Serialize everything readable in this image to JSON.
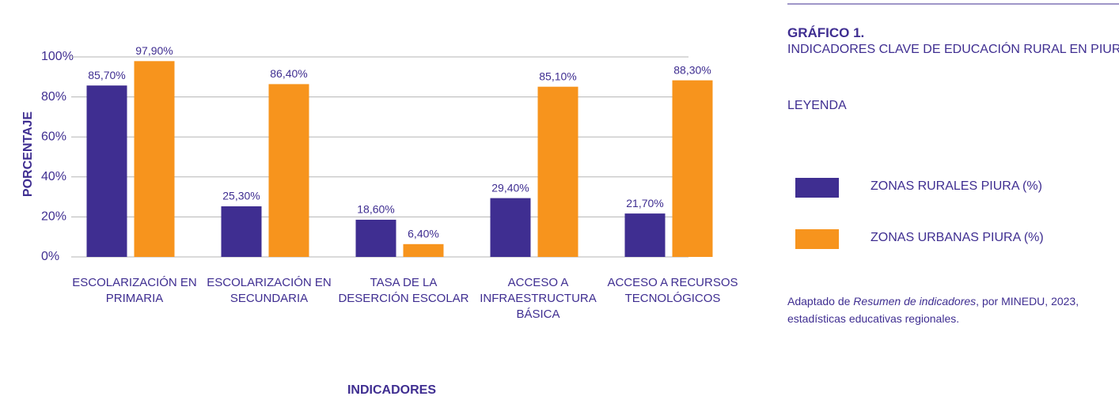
{
  "chart_data": {
    "type": "bar",
    "title": "GRÁFICO 1.",
    "subtitle": "INDICADORES CLAVE DE EDUCACIÓN RURAL EN PIURA",
    "legend_title": "LEYENDA",
    "x_label": "INDICADORES",
    "y_label": "PORCENTAJE",
    "categories": [
      "ESCOLARIZACIÓN EN PRIMARIA",
      "ESCOLARIZACIÓN EN SECUNDARIA",
      "TASA DE LA DESERCIÓN ESCOLAR",
      "ACCESO A INFRAESTRUCTURA BÁSICA",
      "ACCESO A RECURSOS TECNOLÓGICOS"
    ],
    "series": [
      {
        "name": "ZONAS RURALES PIURA (%)",
        "color": "#3f2e91",
        "values": [
          85.7,
          25.3,
          18.6,
          29.4,
          21.7
        ],
        "value_labels": [
          "85,70%",
          "25,30%",
          "18,60%",
          "29,40%",
          "21,70%"
        ]
      },
      {
        "name": "ZONAS URBANAS PIURA (%)",
        "color": "#f7941d",
        "values": [
          97.9,
          86.4,
          6.4,
          85.1,
          88.3
        ],
        "value_labels": [
          "97,90%",
          "86,40%",
          "6,40%",
          "85,10%",
          "88,30%"
        ]
      }
    ],
    "ylim": [
      0,
      100
    ],
    "yticks": [
      {
        "value": 0,
        "label": "0%"
      },
      {
        "value": 20,
        "label": "20%"
      },
      {
        "value": 40,
        "label": "40%"
      },
      {
        "value": 60,
        "label": "60%"
      },
      {
        "value": 80,
        "label": "80%"
      },
      {
        "value": 100,
        "label": "100%"
      }
    ],
    "grid": true,
    "source": {
      "prefix": "Adaptado de",
      "title": "Resumen de indicadores",
      "suffix": ", por MINEDU, 2023, estadísticas educativas regionales."
    }
  }
}
